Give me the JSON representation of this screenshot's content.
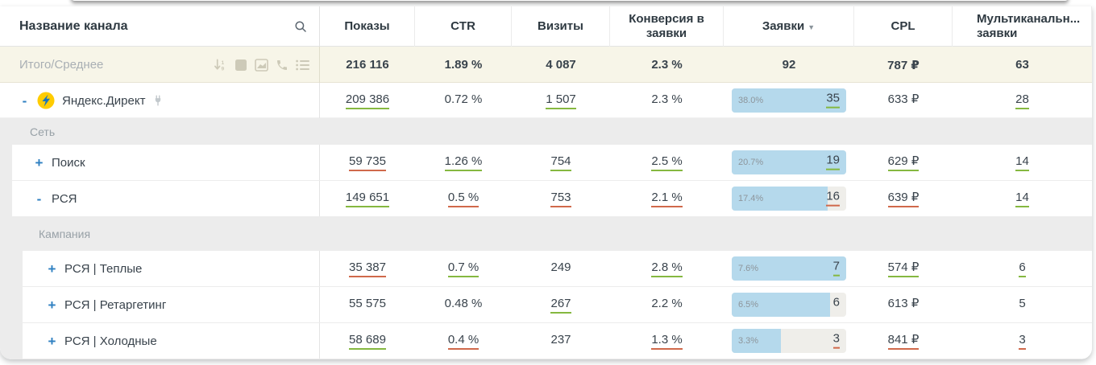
{
  "theme": {
    "accent_blue": "#2d7fc1",
    "green": "#85b840",
    "red": "#d0694b",
    "bar_fill": "#b5d9ec",
    "bar_track": "#efeeea",
    "totals_bg": "#f7f5e8",
    "group_bg": "#ececec"
  },
  "header": {
    "name_col": "Название канала",
    "cols": [
      {
        "label": "Показы"
      },
      {
        "label": "CTR"
      },
      {
        "label": "Визиты"
      },
      {
        "label": "Конверсия в заявки"
      },
      {
        "label": "Заявки",
        "sort_icon": "▼"
      },
      {
        "label": "CPL"
      },
      {
        "label": "Мультиканальн... заявки"
      }
    ]
  },
  "totals": {
    "label": "Итого/Среднее",
    "icons": [
      "sort-numeric-icon",
      "columns-icon",
      "chart-icon",
      "phone-icon",
      "list-icon"
    ],
    "shows": {
      "v": "216 116",
      "t": "none"
    },
    "ctr": {
      "v": "1.89 %",
      "t": "none"
    },
    "visits": {
      "v": "4 087",
      "t": "none"
    },
    "conv": {
      "v": "2.3 %",
      "t": "none"
    },
    "leads_value": "92",
    "cpl": {
      "v": "787 ₽",
      "t": "none"
    },
    "multi": {
      "v": "63",
      "t": "none"
    }
  },
  "groups": {
    "network_label": "Сеть",
    "campaign_label": "Кампания"
  },
  "rows": [
    {
      "toggle": "-",
      "name": "Яндекс.Директ",
      "has_logo": true,
      "has_plug": true,
      "shows": {
        "v": "209 386",
        "t": "up"
      },
      "ctr": {
        "v": "0.72 %",
        "t": "none"
      },
      "visits": {
        "v": "1 507",
        "t": "up"
      },
      "conv": {
        "v": "2.3 %",
        "t": "none"
      },
      "leads": {
        "label": "38.0%",
        "value": "35",
        "fill": 100,
        "t": "up"
      },
      "cpl": {
        "v": "633 ₽",
        "t": "none"
      },
      "multi": {
        "v": "28",
        "t": "up"
      }
    },
    {
      "toggle": "+",
      "name": "Поиск",
      "shows": {
        "v": "59 735",
        "t": "down"
      },
      "ctr": {
        "v": "1.26 %",
        "t": "up"
      },
      "visits": {
        "v": "754",
        "t": "up"
      },
      "conv": {
        "v": "2.5 %",
        "t": "up"
      },
      "leads": {
        "label": "20.7%",
        "value": "19",
        "fill": 100,
        "t": "up"
      },
      "cpl": {
        "v": "629 ₽",
        "t": "up"
      },
      "multi": {
        "v": "14",
        "t": "up"
      }
    },
    {
      "toggle": "-",
      "name": "РСЯ",
      "shows": {
        "v": "149 651",
        "t": "up"
      },
      "ctr": {
        "v": "0.5 %",
        "t": "down"
      },
      "visits": {
        "v": "753",
        "t": "down"
      },
      "conv": {
        "v": "2.1 %",
        "t": "down"
      },
      "leads": {
        "label": "17.4%",
        "value": "16",
        "fill": 84,
        "t": "down"
      },
      "cpl": {
        "v": "639 ₽",
        "t": "down"
      },
      "multi": {
        "v": "14",
        "t": "up"
      }
    },
    {
      "toggle": "+",
      "name": "РСЯ | Теплые",
      "shows": {
        "v": "35 387",
        "t": "down"
      },
      "ctr": {
        "v": "0.7 %",
        "t": "up"
      },
      "visits": {
        "v": "249",
        "t": "none"
      },
      "conv": {
        "v": "2.8 %",
        "t": "up"
      },
      "leads": {
        "label": "7.6%",
        "value": "7",
        "fill": 100,
        "t": "up"
      },
      "cpl": {
        "v": "574 ₽",
        "t": "up"
      },
      "multi": {
        "v": "6",
        "t": "up"
      }
    },
    {
      "toggle": "+",
      "name": "РСЯ | Ретаргетинг",
      "shows": {
        "v": "55 575",
        "t": "none"
      },
      "ctr": {
        "v": "0.48 %",
        "t": "none"
      },
      "visits": {
        "v": "267",
        "t": "up"
      },
      "conv": {
        "v": "2.2 %",
        "t": "none"
      },
      "leads": {
        "label": "6.5%",
        "value": "6",
        "fill": 86,
        "t": "none"
      },
      "cpl": {
        "v": "613 ₽",
        "t": "none"
      },
      "multi": {
        "v": "5",
        "t": "none"
      }
    },
    {
      "toggle": "+",
      "name": "РСЯ | Холодные",
      "shows": {
        "v": "58 689",
        "t": "up"
      },
      "ctr": {
        "v": "0.4 %",
        "t": "down"
      },
      "visits": {
        "v": "237",
        "t": "none"
      },
      "conv": {
        "v": "1.3 %",
        "t": "down"
      },
      "leads": {
        "label": "3.3%",
        "value": "3",
        "fill": 43,
        "t": "down"
      },
      "cpl": {
        "v": "841 ₽",
        "t": "down"
      },
      "multi": {
        "v": "3",
        "t": "down"
      }
    }
  ]
}
